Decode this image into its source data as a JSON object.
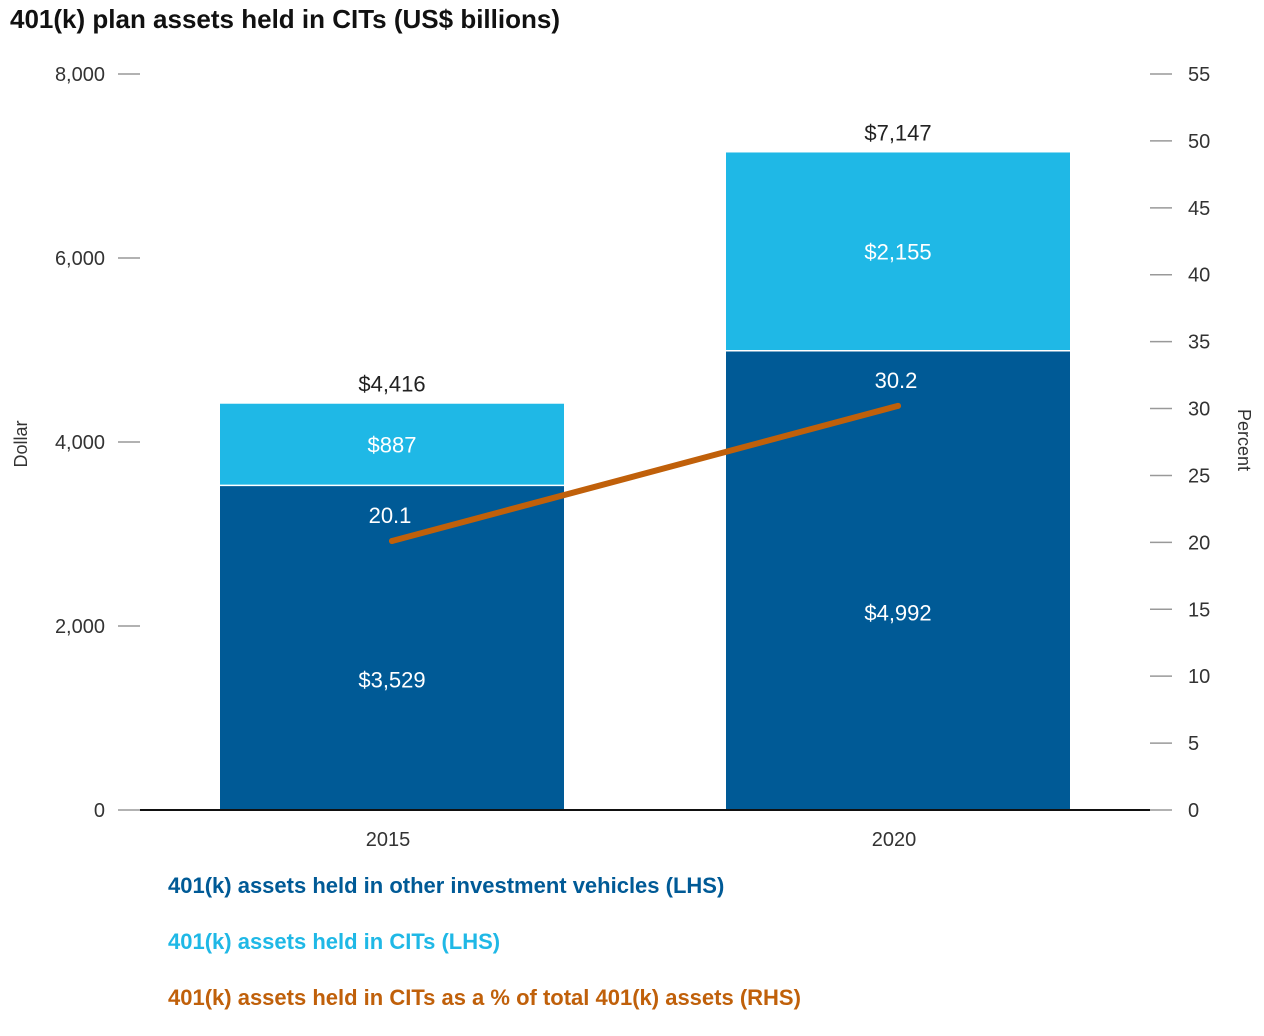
{
  "chart_data": {
    "type": "bar",
    "stacked": true,
    "title": "401(k) plan assets held in CITs (US$ billions)",
    "categories": [
      "2015",
      "2020"
    ],
    "ylabel": "Dollar",
    "ylim": [
      0,
      8000
    ],
    "yticks": [
      0,
      2000,
      4000,
      6000,
      8000
    ],
    "ytick_labels": [
      "0",
      "2,000",
      "4,000",
      "6,000",
      "8,000"
    ],
    "y2label": "Percent",
    "y2lim": [
      0,
      55
    ],
    "y2ticks": [
      0,
      5,
      10,
      15,
      20,
      25,
      30,
      35,
      40,
      45,
      50,
      55
    ],
    "y2tick_labels": [
      "0",
      "5",
      "10",
      "15",
      "20",
      "25",
      "30",
      "35",
      "40",
      "45",
      "50",
      "55"
    ],
    "grid": false,
    "series": [
      {
        "name": "401(k) assets held in other investment vehicles (LHS)",
        "axis": "left",
        "kind": "bar",
        "color": "#005a96",
        "values": [
          3529,
          4992
        ],
        "labels": [
          "$3,529",
          "$4,992"
        ]
      },
      {
        "name": "401(k) assets held in CITs (LHS)",
        "axis": "left",
        "kind": "bar",
        "color": "#1fb8e6",
        "values": [
          887,
          2155
        ],
        "labels": [
          "$887",
          "$2,155"
        ]
      },
      {
        "name": "401(k) assets held in CITs as a % of total 401(k) assets (RHS)",
        "axis": "right",
        "kind": "line",
        "color": "#c0600a",
        "values": [
          20.1,
          30.2
        ],
        "labels": [
          "20.1",
          "30.2"
        ]
      }
    ],
    "totals": [
      4416,
      7147
    ],
    "total_labels": [
      "$4,416",
      "$7,147"
    ],
    "legend_position": "bottom-left"
  }
}
